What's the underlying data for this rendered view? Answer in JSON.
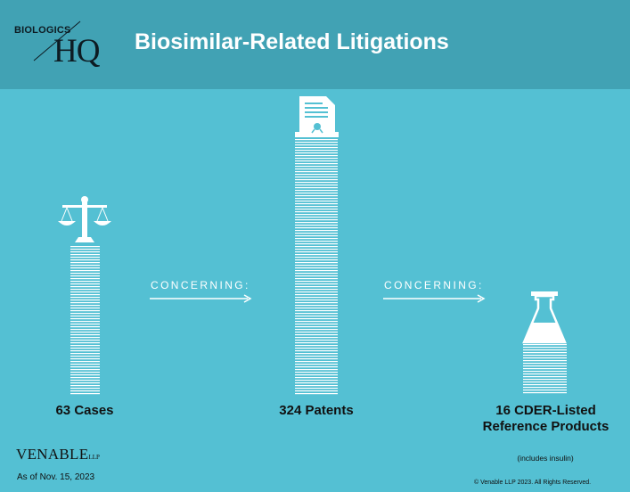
{
  "header": {
    "title": "Biosimilar-Related Litigations",
    "logo_top": "BIOLOGICS",
    "logo_main": "HQ"
  },
  "chart_data": {
    "type": "bar",
    "categories": [
      "63 Cases",
      "324 Patents",
      "16 CDER-Listed Reference Products"
    ],
    "values": [
      63,
      324,
      16
    ],
    "category_note": [
      "",
      "",
      "(includes insulin)"
    ],
    "connectors": [
      "CONCERNING:",
      "CONCERNING:"
    ],
    "icons": [
      "scales-of-justice-icon",
      "patent-document-icon",
      "lab-flask-icon"
    ],
    "colors": {
      "background": "#54c0d3",
      "header": "#41a2b4",
      "stripes": "#ffffff"
    }
  },
  "footer": {
    "brand": "VENABLE",
    "brand_suffix": "LLP",
    "as_of": "As of Nov. 15, 2023",
    "copyright": "© Venable LLP 2023. All Rights Reserved."
  }
}
